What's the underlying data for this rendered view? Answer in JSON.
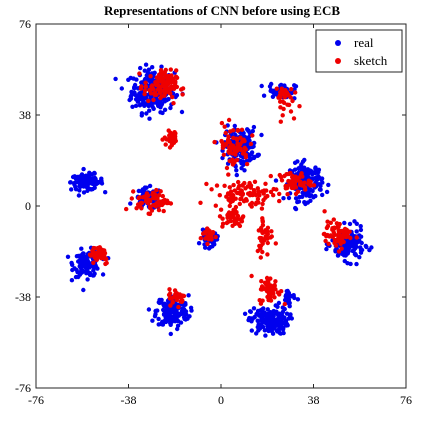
{
  "chart_data": {
    "type": "scatter",
    "title": "Representations of CNN before using ECB",
    "xlabel": "",
    "ylabel": "",
    "xlim": [
      -76,
      76
    ],
    "ylim": [
      -76,
      76
    ],
    "xticks": [
      -76,
      -38,
      0,
      38,
      76
    ],
    "yticks": [
      76,
      38,
      0,
      -38,
      -76
    ],
    "xtick_labels": [
      "-76",
      "-38",
      "0",
      "38",
      "76"
    ],
    "ytick_labels": [
      "76",
      "38",
      "0",
      "-38",
      "-76"
    ],
    "grid": false,
    "legend_position": "top-right",
    "series": [
      {
        "name": "real",
        "color": "#0000ee",
        "clusters": [
          {
            "center": [
              -28,
              48
            ],
            "spread": [
              8,
              8
            ],
            "count": 260
          },
          {
            "center": [
              -55,
              10
            ],
            "spread": [
              6,
              3
            ],
            "count": 110
          },
          {
            "center": [
              -30,
              3
            ],
            "spread": [
              5,
              4
            ],
            "count": 70
          },
          {
            "center": [
              -55,
              -24
            ],
            "spread": [
              5,
              5
            ],
            "count": 110
          },
          {
            "center": [
              -20,
              -44
            ],
            "spread": [
              6,
              6
            ],
            "count": 160
          },
          {
            "center": [
              20,
              -48
            ],
            "spread": [
              7,
              5
            ],
            "count": 170
          },
          {
            "center": [
              8,
              25
            ],
            "spread": [
              6,
              7
            ],
            "count": 170
          },
          {
            "center": [
              35,
              10
            ],
            "spread": [
              6,
              7
            ],
            "count": 150
          },
          {
            "center": [
              52,
              -16
            ],
            "spread": [
              6,
              6
            ],
            "count": 160
          },
          {
            "center": [
              -5,
              -14
            ],
            "spread": [
              3,
              3
            ],
            "count": 40
          },
          {
            "center": [
              25,
              48
            ],
            "spread": [
              5,
              3
            ],
            "count": 60
          },
          {
            "center": [
              28,
              -38
            ],
            "spread": [
              3,
              3
            ],
            "count": 20
          }
        ]
      },
      {
        "name": "sketch",
        "color": "#ee0000",
        "clusters": [
          {
            "center": [
              -25,
              50
            ],
            "spread": [
              6,
              6
            ],
            "count": 110
          },
          {
            "center": [
              -20,
              28
            ],
            "spread": [
              3,
              3
            ],
            "count": 30
          },
          {
            "center": [
              -28,
              2
            ],
            "spread": [
              6,
              4
            ],
            "count": 70
          },
          {
            "center": [
              -50,
              -20
            ],
            "spread": [
              4,
              4
            ],
            "count": 45
          },
          {
            "center": [
              -18,
              -38
            ],
            "spread": [
              3,
              3
            ],
            "count": 30
          },
          {
            "center": [
              20,
              -35
            ],
            "spread": [
              4,
              5
            ],
            "count": 55
          },
          {
            "center": [
              18,
              -12
            ],
            "spread": [
              3,
              8
            ],
            "count": 40
          },
          {
            "center": [
              5,
              25
            ],
            "spread": [
              6,
              8
            ],
            "count": 70
          },
          {
            "center": [
              10,
              5
            ],
            "spread": [
              12,
              5
            ],
            "count": 90
          },
          {
            "center": [
              5,
              -5
            ],
            "spread": [
              4,
              4
            ],
            "count": 40
          },
          {
            "center": [
              30,
              10
            ],
            "spread": [
              6,
              4
            ],
            "count": 50
          },
          {
            "center": [
              48,
              -12
            ],
            "spread": [
              5,
              5
            ],
            "count": 70
          },
          {
            "center": [
              25,
              45
            ],
            "spread": [
              4,
              6
            ],
            "count": 35
          },
          {
            "center": [
              -5,
              -12
            ],
            "spread": [
              3,
              3
            ],
            "count": 25
          }
        ]
      }
    ]
  }
}
